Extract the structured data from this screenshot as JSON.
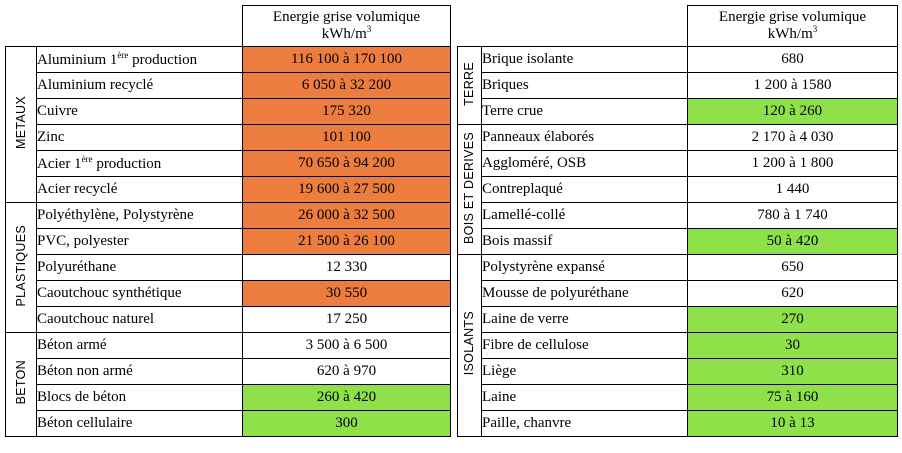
{
  "header": {
    "line1": "Energie grise volumique",
    "unit_base": "kWh/m",
    "unit_exp": "3"
  },
  "left": {
    "groups": [
      {
        "label": "METAUX",
        "rows": [
          {
            "material": "Aluminium 1",
            "sup": "ère",
            "material_suffix": " production",
            "value": "116 100 à 170 100",
            "level": "hi"
          },
          {
            "material": "Aluminium recyclé",
            "value": "6 050 à 32 200",
            "level": "hi"
          },
          {
            "material": "Cuivre",
            "value": "175 320",
            "level": "hi"
          },
          {
            "material": "Zinc",
            "value": "101 100",
            "level": "hi"
          },
          {
            "material": "Acier 1",
            "sup": "ère",
            "material_suffix": " production",
            "value": "70 650 à 94 200",
            "level": "hi"
          },
          {
            "material": "Acier recyclé",
            "value": "19 600 à 27 500",
            "level": "hi"
          }
        ]
      },
      {
        "label": "PLASTIQUES",
        "rows": [
          {
            "material": "Polyéthylène, Polystyrène",
            "value": "26 000 à 32 500",
            "level": "hi"
          },
          {
            "material": "PVC, polyester",
            "value": "21 500 à 26 100",
            "level": "hi"
          },
          {
            "material": "Polyuréthane",
            "value": "12 330",
            "level": "none"
          },
          {
            "material": "Caoutchouc synthétique",
            "value": "30 550",
            "level": "hi"
          },
          {
            "material": "Caoutchouc naturel",
            "value": "17 250",
            "level": "none"
          }
        ]
      },
      {
        "label": "BETON",
        "rows": [
          {
            "material": "Béton armé",
            "value": "3 500 à 6 500",
            "level": "none"
          },
          {
            "material": "Béton non armé",
            "value": "620 à 970",
            "level": "none"
          },
          {
            "material": "Blocs de béton",
            "value": "260 à 420",
            "level": "lo"
          },
          {
            "material": "Béton cellulaire",
            "value": "300",
            "level": "lo"
          }
        ]
      }
    ]
  },
  "right": {
    "groups": [
      {
        "label": "TERRE",
        "rows": [
          {
            "material": "Brique isolante",
            "value": "680",
            "level": "none"
          },
          {
            "material": "Briques",
            "value": "1 200 à 1580",
            "level": "none"
          },
          {
            "material": "Terre crue",
            "value": "120 à 260",
            "level": "lo"
          }
        ]
      },
      {
        "label": "BOIS ET DERIVES",
        "rows": [
          {
            "material": "Panneaux élaborés",
            "value": "2 170 à 4 030",
            "level": "none"
          },
          {
            "material": "Aggloméré, OSB",
            "value": "1 200 à  1 800",
            "level": "none"
          },
          {
            "material": "Contreplaqué",
            "value": "1 440",
            "level": "none"
          },
          {
            "material": "Lamellé-collé",
            "value": "780 à 1 740",
            "level": "none"
          },
          {
            "material": "Bois massif",
            "value": "50 à 420",
            "level": "lo"
          }
        ]
      },
      {
        "label": "ISOLANTS",
        "rows": [
          {
            "material": "Polystyrène expansé",
            "value": "650",
            "level": "none"
          },
          {
            "material": "Mousse de polyuréthane",
            "value": "620",
            "level": "none"
          },
          {
            "material": "Laine de verre",
            "value": "270",
            "level": "lo"
          },
          {
            "material": "Fibre de cellulose",
            "value": "30",
            "level": "lo"
          },
          {
            "material": "Liège",
            "value": "310",
            "level": "lo"
          },
          {
            "material": "Laine",
            "value": "75 à 160",
            "level": "lo"
          },
          {
            "material": "Paille, chanvre",
            "value": "10 à 13",
            "level": "lo"
          }
        ]
      }
    ]
  }
}
